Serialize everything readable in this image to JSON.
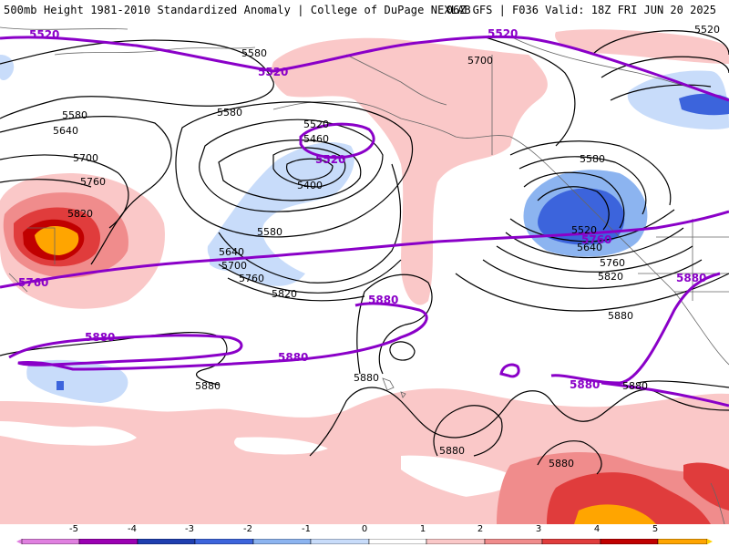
{
  "header": {
    "title": "500mb Height 1981-2010 Standardized Anomaly | College of DuPage NEXLAB",
    "run": "06Z GFS | F036 Valid: 18Z FRI JUN 20 2025"
  },
  "colors": {
    "anom_neg5": "#9b00b3",
    "anom_neg4": "#1f3fb0",
    "anom_neg3": "#3c64dc",
    "anom_neg2": "#8cb4f0",
    "anom_neg1": "#c8dcfa",
    "anom_pos1": "#fac8c8",
    "anom_pos2": "#f08c8c",
    "anom_pos3": "#e03c3c",
    "anom_pos4": "#c00000",
    "anom_pos5": "#ffa500",
    "purple_contour": "#8a00c8",
    "black_contour": "#000000",
    "coastline": "#666666"
  },
  "contour_labels": {
    "black": [
      "5580",
      "5640",
      "5700",
      "5760",
      "5820",
      "5580",
      "5520",
      "5460",
      "5400",
      "5580",
      "5640",
      "5700",
      "5760",
      "5820",
      "5880",
      "5880",
      "5700",
      "5580",
      "5520",
      "5640",
      "5760",
      "5820",
      "5880",
      "5880",
      "5880",
      "5880",
      "5520",
      "5580"
    ],
    "purple": [
      "5520",
      "5520",
      "5520",
      "5520",
      "5760",
      "5760",
      "5880",
      "5880",
      "5880",
      "5880",
      "5880"
    ]
  },
  "colorbar": {
    "ticks": [
      "-5",
      "-4",
      "-3",
      "-2",
      "-1",
      "0",
      "1",
      "2",
      "3",
      "4",
      "5"
    ]
  }
}
